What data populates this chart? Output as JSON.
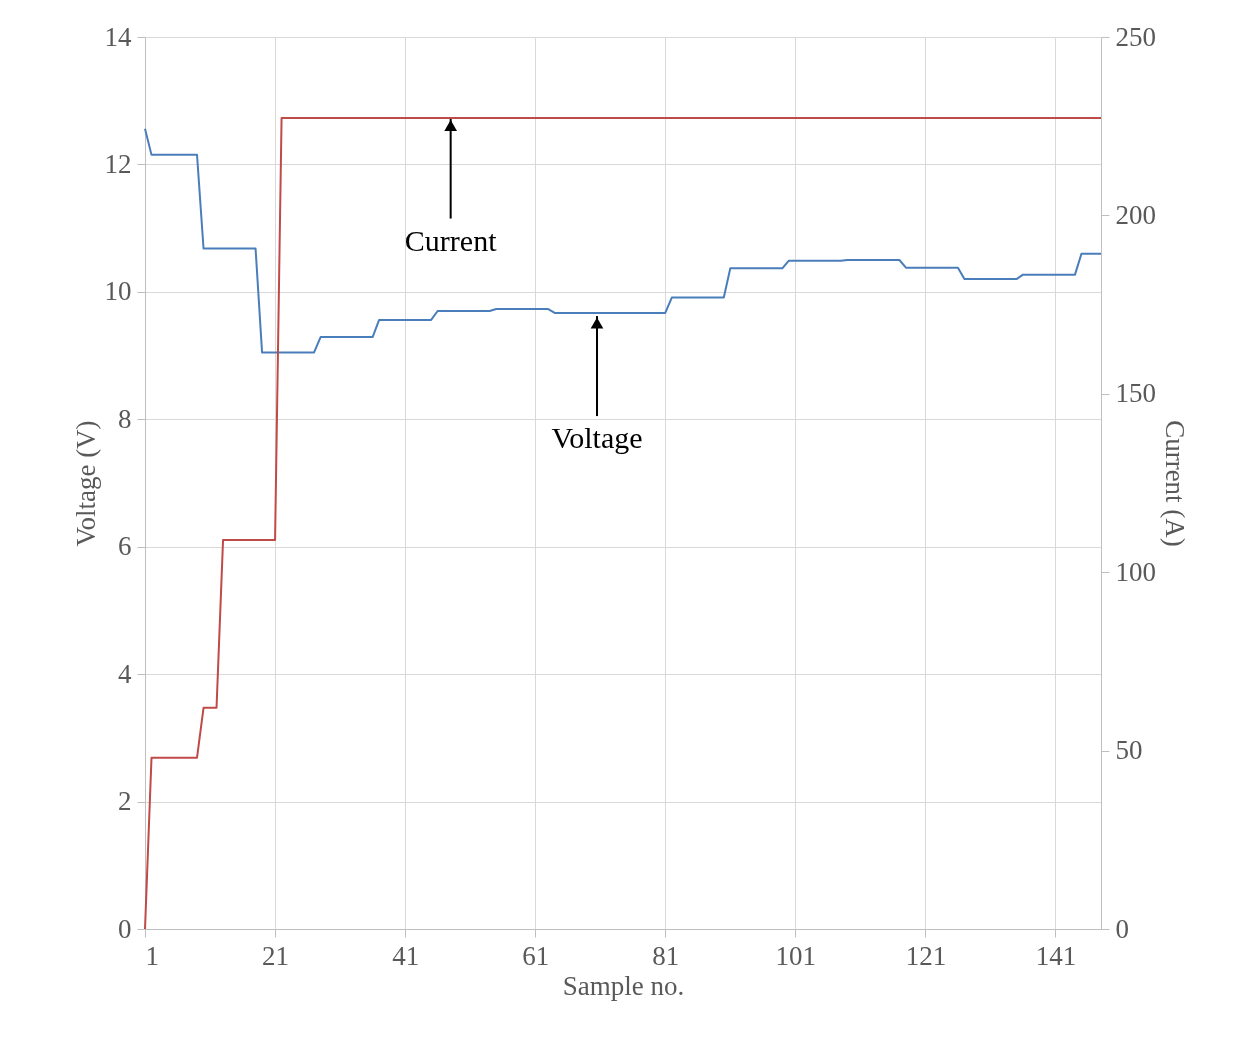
{
  "chart_data": {
    "type": "line",
    "xlabel": "Sample no.",
    "ylabel": "Voltage (V)",
    "y2label": "Current (A)",
    "xlim": [
      1,
      148
    ],
    "xticks": [
      1,
      21,
      41,
      61,
      81,
      101,
      121,
      141
    ],
    "ylim": [
      0,
      14
    ],
    "yticks": [
      0,
      2,
      4,
      6,
      8,
      10,
      12,
      14
    ],
    "y2lim": [
      0,
      250
    ],
    "y2ticks": [
      0,
      50,
      100,
      150,
      200,
      250
    ],
    "grid": true,
    "marker": "none",
    "line_style": "solid",
    "series": [
      {
        "color": "#4a7ebb",
        "x": [
          1,
          2,
          9,
          10,
          18,
          19,
          27,
          28,
          36,
          37,
          45,
          46,
          54,
          55,
          63,
          64,
          81,
          82,
          90,
          91,
          99,
          100,
          108,
          109,
          117,
          118,
          126,
          127,
          135,
          136,
          144,
          145,
          148
        ],
        "values": [
          12.56,
          12.15,
          12.15,
          10.68,
          10.68,
          9.05,
          9.05,
          9.29,
          9.29,
          9.56,
          9.56,
          9.7,
          9.7,
          9.73,
          9.73,
          9.67,
          9.67,
          9.91,
          9.91,
          10.37,
          10.37,
          10.49,
          10.49,
          10.5,
          10.5,
          10.38,
          10.38,
          10.2,
          10.2,
          10.27,
          10.27,
          10.6,
          10.6
        ]
      },
      {
        "color": "#be4b48",
        "axis": "y2",
        "x": [
          1,
          2,
          9,
          10,
          12,
          13,
          21,
          22,
          148
        ],
        "values": [
          0,
          48,
          48,
          62,
          62,
          109,
          109,
          227.3,
          227.3
        ]
      }
    ],
    "annotations": [
      {
        "text": "Current",
        "x": 48,
        "y": 12.72
      },
      {
        "text": "Voltage",
        "x": 70.5,
        "y": 9.62
      }
    ]
  }
}
